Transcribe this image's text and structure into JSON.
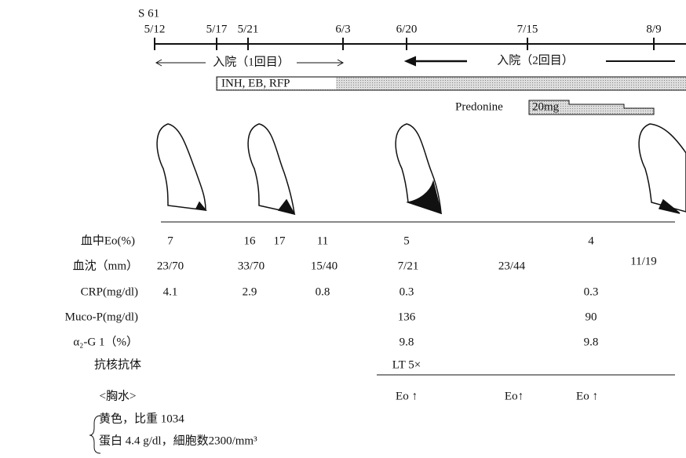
{
  "header": {
    "era": "S 61"
  },
  "timeline": {
    "dates": [
      "5/12",
      "5/17",
      "5/21",
      "6/3",
      "6/20",
      "7/15",
      "8/9"
    ]
  },
  "admissions": [
    "入院（1回目）",
    "入院（2回目）"
  ],
  "drugs": {
    "antitb": "INH, EB, RFP",
    "steroid": "Predonine",
    "steroid_dose": "20mg"
  },
  "labs": [
    {
      "label": "血中Eo(%)",
      "cells": [
        "7",
        "16",
        "17",
        "11",
        "5",
        "4"
      ]
    },
    {
      "label": "血沈（mm）",
      "cells": [
        "23/70",
        "33/70",
        "15/40",
        "7/21",
        "23/44",
        "11/19"
      ]
    },
    {
      "label": "CRP(mg/dl)",
      "cells": [
        "4.1",
        "2.9",
        "0.8",
        "0.3",
        "0.3"
      ]
    },
    {
      "label": "Muco-P(mg/dl)",
      "cells": [
        "136",
        "90"
      ]
    },
    {
      "label": "α₂-G 1（%）",
      "cells": [
        "9.8",
        "9.8"
      ]
    },
    {
      "label": "抗核抗体",
      "cells": [
        "LT 5×"
      ]
    }
  ],
  "pleural": {
    "label": "<胸水>",
    "cells": [
      "Eo ↑",
      "Eo↑",
      "Eo ↑"
    ],
    "notes": [
      "黄色，比重 1034",
      "蛋白 4.4 g/dl，細胞数2300/mm³"
    ]
  }
}
